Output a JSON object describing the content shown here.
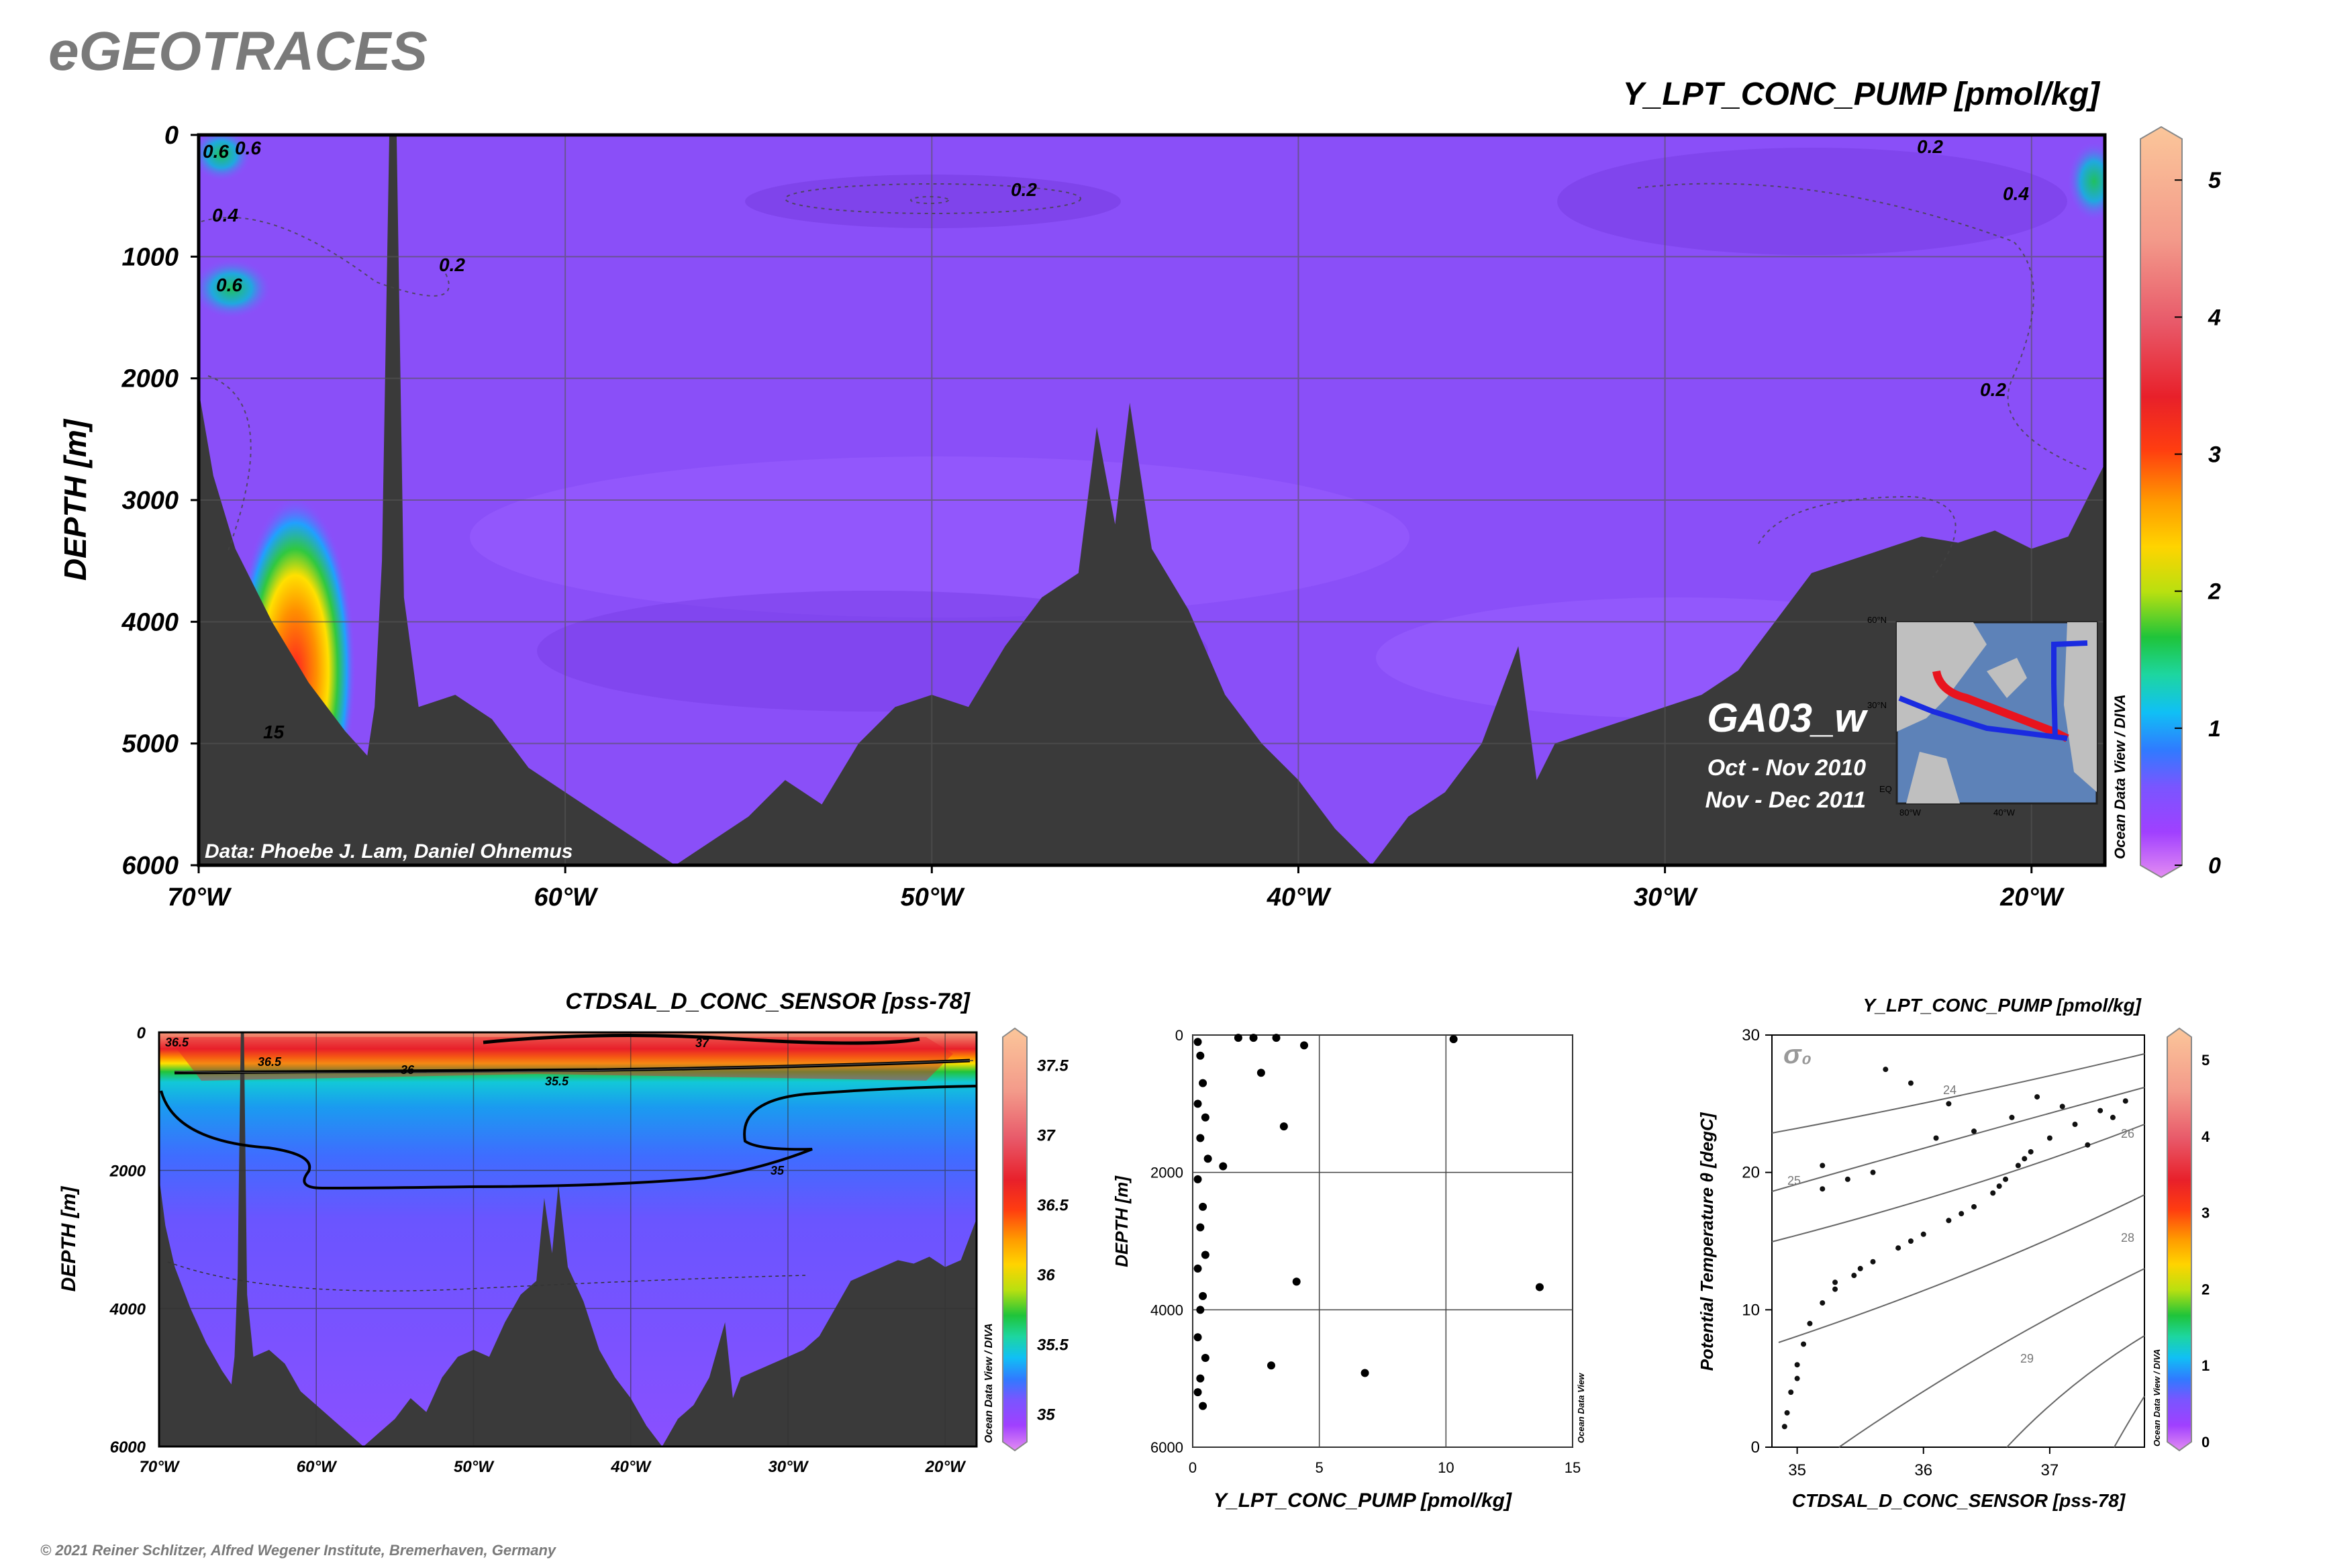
{
  "header": {
    "brand": "eGEOTRACES",
    "copyright": "© 2021 Reiner Schlitzer, Alfred Wegener Institute, Bremerhaven, Germany"
  },
  "chart_data": [
    {
      "type": "heatmap",
      "title": "Y_LPT_CONC_PUMP [pmol/kg]",
      "ylabel": "DEPTH [m]",
      "xlim": [
        -70,
        -18
      ],
      "ylim": [
        6000,
        0
      ],
      "x_ticks": [
        "70°W",
        "60°W",
        "50°W",
        "40°W",
        "30°W",
        "20°W"
      ],
      "y_ticks": [
        "0",
        "1000",
        "2000",
        "3000",
        "4000",
        "5000",
        "6000"
      ],
      "colorbar": {
        "min": 0,
        "max": 5.3,
        "ticks": [
          "0",
          "1",
          "2",
          "3",
          "4",
          "5"
        ]
      },
      "contour_labels": [
        "0.6",
        "0.6",
        "0.4",
        "0.6",
        "0.2",
        "0.2",
        "0.2",
        "0.4",
        "0.2",
        "15"
      ],
      "annotations": {
        "credit": "Data: Phoebe J. Lam, Daniel Ohnemus",
        "cruise": "GA03_w",
        "dates_1": "Oct - Nov 2010",
        "dates_2": "Nov - Dec 2011",
        "odv": "Ocean Data View / DIVA"
      },
      "inset_map": {
        "lat_labels": [
          "60°N",
          "30°N",
          "EQ"
        ],
        "lon_labels": [
          "80°W",
          "40°W"
        ],
        "track_colors": [
          "#e8141e",
          "#1a2be0"
        ]
      },
      "bottom_profile": [
        [
          -70,
          2100
        ],
        [
          -69.6,
          2800
        ],
        [
          -69,
          3400
        ],
        [
          -68,
          4000
        ],
        [
          -67,
          4500
        ],
        [
          -66,
          4900
        ],
        [
          -65.4,
          5100
        ],
        [
          -65.2,
          4700
        ],
        [
          -65,
          3500
        ],
        [
          -64.8,
          0
        ],
        [
          -64.6,
          0
        ],
        [
          -64.4,
          3800
        ],
        [
          -64,
          4700
        ],
        [
          -63,
          4600
        ],
        [
          -62,
          4800
        ],
        [
          -61,
          5200
        ],
        [
          -60,
          5400
        ],
        [
          -59,
          5600
        ],
        [
          -58,
          5800
        ],
        [
          -57,
          6000
        ],
        [
          -56,
          5800
        ],
        [
          -55,
          5600
        ],
        [
          -54,
          5300
        ],
        [
          -53,
          5500
        ],
        [
          -52,
          5000
        ],
        [
          -51,
          4700
        ],
        [
          -50,
          4600
        ],
        [
          -49,
          4700
        ],
        [
          -48,
          4200
        ],
        [
          -47,
          3800
        ],
        [
          -46,
          3600
        ],
        [
          -45.5,
          2400
        ],
        [
          -45,
          3200
        ],
        [
          -44.6,
          2200
        ],
        [
          -44,
          3400
        ],
        [
          -43,
          3900
        ],
        [
          -42,
          4600
        ],
        [
          -41,
          5000
        ],
        [
          -40,
          5300
        ],
        [
          -39,
          5700
        ],
        [
          -38,
          6000
        ],
        [
          -37,
          5600
        ],
        [
          -36,
          5400
        ],
        [
          -35,
          5000
        ],
        [
          -34,
          4200
        ],
        [
          -33.5,
          5300
        ],
        [
          -33,
          5000
        ],
        [
          -32,
          4900
        ],
        [
          -31,
          4800
        ],
        [
          -30,
          4700
        ],
        [
          -29,
          4600
        ],
        [
          -28,
          4400
        ],
        [
          -27,
          4000
        ],
        [
          -26,
          3600
        ],
        [
          -25,
          3500
        ],
        [
          -24,
          3400
        ],
        [
          -23,
          3300
        ],
        [
          -22,
          3350
        ],
        [
          -21,
          3250
        ],
        [
          -20,
          3400
        ],
        [
          -19,
          3300
        ],
        [
          -18.5,
          3000
        ],
        [
          -18,
          2700
        ]
      ]
    },
    {
      "type": "heatmap",
      "title": "CTDSAL_D_CONC_SENSOR [pss-78]",
      "ylabel": "DEPTH [m]",
      "xlim": [
        -70,
        -18
      ],
      "ylim": [
        6000,
        0
      ],
      "x_ticks": [
        "70°W",
        "60°W",
        "50°W",
        "40°W",
        "30°W",
        "20°W"
      ],
      "y_ticks": [
        "0",
        "2000",
        "4000",
        "6000"
      ],
      "colorbar": {
        "min": 34.8,
        "max": 37.7,
        "ticks": [
          "35",
          "35.5",
          "36",
          "36.5",
          "37",
          "37.5"
        ]
      },
      "contour_labels": [
        "36.5",
        "36.5",
        "37",
        "36",
        "35.5",
        "35"
      ],
      "annotations": {
        "odv": "Ocean Data View / DIVA"
      }
    },
    {
      "type": "scatter",
      "xlabel": "Y_LPT_CONC_PUMP [pmol/kg]",
      "ylabel": "DEPTH [m]",
      "xlim": [
        0,
        15
      ],
      "ylim": [
        6000,
        0
      ],
      "x_ticks": [
        "0",
        "5",
        "10",
        "15"
      ],
      "y_ticks": [
        "0",
        "2000",
        "4000",
        "6000"
      ],
      "annotations": {
        "odv": "Ocean Data View"
      },
      "points": [
        [
          10.3,
          60
        ],
        [
          13.7,
          3670
        ],
        [
          6.8,
          4920
        ],
        [
          4.1,
          3590
        ],
        [
          3.1,
          4810
        ],
        [
          3.6,
          1330
        ],
        [
          4.4,
          150
        ],
        [
          2.7,
          550
        ],
        [
          1.2,
          1910
        ],
        [
          3.3,
          40
        ],
        [
          2.4,
          40
        ],
        [
          1.8,
          40
        ],
        [
          0.2,
          100
        ],
        [
          0.3,
          300
        ],
        [
          0.4,
          700
        ],
        [
          0.2,
          1000
        ],
        [
          0.5,
          1200
        ],
        [
          0.3,
          1500
        ],
        [
          0.6,
          1800
        ],
        [
          0.2,
          2100
        ],
        [
          0.4,
          2500
        ],
        [
          0.3,
          2800
        ],
        [
          0.5,
          3200
        ],
        [
          0.2,
          3400
        ],
        [
          0.4,
          3800
        ],
        [
          0.3,
          4000
        ],
        [
          0.2,
          4400
        ],
        [
          0.5,
          4700
        ],
        [
          0.3,
          5000
        ],
        [
          0.2,
          5200
        ],
        [
          0.4,
          5400
        ]
      ]
    },
    {
      "type": "scatter",
      "xlabel": "CTDSAL_D_CONC_SENSOR [pss-78]",
      "ylabel": "Potential Temperature θ [degC]",
      "xlim": [
        34.8,
        37.75
      ],
      "ylim": [
        0,
        30
      ],
      "x_ticks": [
        "35",
        "36",
        "37"
      ],
      "y_ticks": [
        "0",
        "10",
        "20",
        "30"
      ],
      "isopycnal_labels": [
        "24",
        "25",
        "26",
        "28",
        "29"
      ],
      "sigma_label": "σ₀",
      "colorbar": {
        "min": 0,
        "max": 5.3,
        "ticks": [
          "0",
          "1",
          "2",
          "3",
          "4",
          "5"
        ]
      },
      "annotations": {
        "odv": "Ocean Data View / DIVA",
        "color_title": "Y_LPT_CONC_PUMP [pmol/kg]"
      },
      "points": [
        [
          34.9,
          1.5
        ],
        [
          34.92,
          2.5
        ],
        [
          34.95,
          4
        ],
        [
          35.0,
          6
        ],
        [
          35.05,
          7.5
        ],
        [
          35.1,
          9
        ],
        [
          35.2,
          10.5
        ],
        [
          35.3,
          11.5
        ],
        [
          35.45,
          12.5
        ],
        [
          35.6,
          13.5
        ],
        [
          35.8,
          14.5
        ],
        [
          36.0,
          15.5
        ],
        [
          36.2,
          16.5
        ],
        [
          36.4,
          17.5
        ],
        [
          36.55,
          18.5
        ],
        [
          36.65,
          19.5
        ],
        [
          36.75,
          20.5
        ],
        [
          36.85,
          21.5
        ],
        [
          37.0,
          22.5
        ],
        [
          37.2,
          23.5
        ],
        [
          37.4,
          24.5
        ],
        [
          37.6,
          25.2
        ],
        [
          35.6,
          20
        ],
        [
          35.4,
          19.5
        ],
        [
          35.2,
          18.8
        ],
        [
          36.1,
          22.5
        ],
        [
          36.4,
          23
        ],
        [
          36.7,
          24
        ],
        [
          35.7,
          27.5
        ],
        [
          36.2,
          25
        ],
        [
          35.9,
          26.5
        ],
        [
          36.9,
          25.5
        ],
        [
          37.1,
          24.8
        ],
        [
          35.3,
          12
        ],
        [
          35.0,
          5
        ],
        [
          35.5,
          13
        ],
        [
          35.9,
          15
        ],
        [
          36.3,
          17
        ],
        [
          36.6,
          19
        ],
        [
          36.8,
          21
        ],
        [
          37.3,
          22
        ],
        [
          37.5,
          24
        ],
        [
          35.2,
          20.5
        ]
      ]
    }
  ]
}
